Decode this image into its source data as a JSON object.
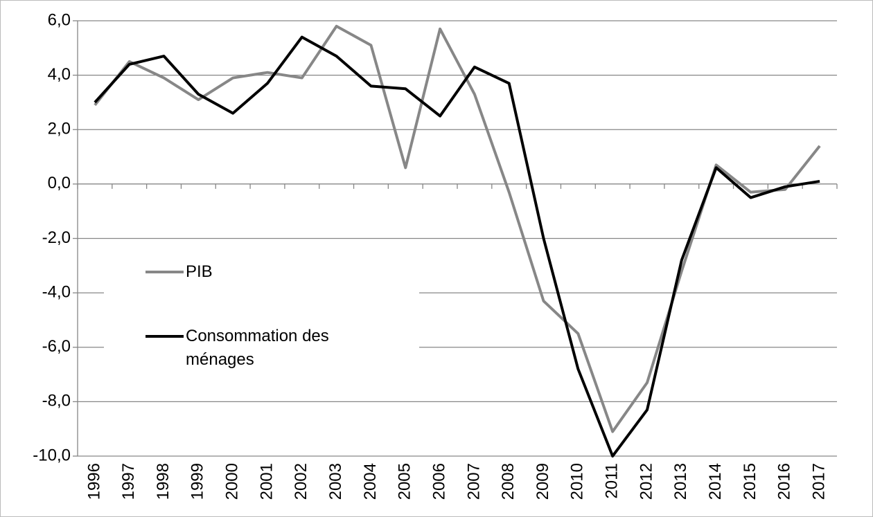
{
  "chart_data": {
    "type": "line",
    "categories": [
      "1996",
      "1997",
      "1998",
      "1999",
      "2000",
      "2001",
      "2002",
      "2003",
      "2004",
      "2005",
      "2006",
      "2007",
      "2008",
      "2009",
      "2010",
      "2011",
      "2012",
      "2013",
      "2014",
      "2015",
      "2016",
      "2017"
    ],
    "series": [
      {
        "name": "PIB",
        "color": "#878787",
        "values": [
          2.9,
          4.5,
          3.9,
          3.1,
          3.9,
          4.1,
          3.9,
          5.8,
          5.1,
          0.6,
          5.7,
          3.3,
          -0.3,
          -4.3,
          -5.5,
          -9.1,
          -7.3,
          -3.2,
          0.7,
          -0.3,
          -0.2,
          1.4
        ]
      },
      {
        "name": "Consommation des ménages",
        "color": "#000000",
        "values": [
          3.0,
          4.4,
          4.7,
          3.3,
          2.6,
          3.7,
          5.4,
          4.7,
          3.6,
          3.5,
          2.5,
          4.3,
          3.7,
          -2.0,
          -6.8,
          -10.0,
          -8.3,
          -2.8,
          0.6,
          -0.5,
          -0.1,
          0.1
        ]
      }
    ],
    "ylim": [
      -10,
      6
    ],
    "yticks": [
      {
        "value": 6,
        "label": "6,0"
      },
      {
        "value": 4,
        "label": "4,0"
      },
      {
        "value": 2,
        "label": "2,0"
      },
      {
        "value": 0,
        "label": "0,0"
      },
      {
        "value": -2,
        "label": "-2,0"
      },
      {
        "value": -4,
        "label": "-4,0"
      },
      {
        "value": -6,
        "label": "-6,0"
      },
      {
        "value": -8,
        "label": "-8,0"
      },
      {
        "value": -10,
        "label": "-10,0"
      }
    ],
    "grid": true,
    "legend": "left"
  }
}
